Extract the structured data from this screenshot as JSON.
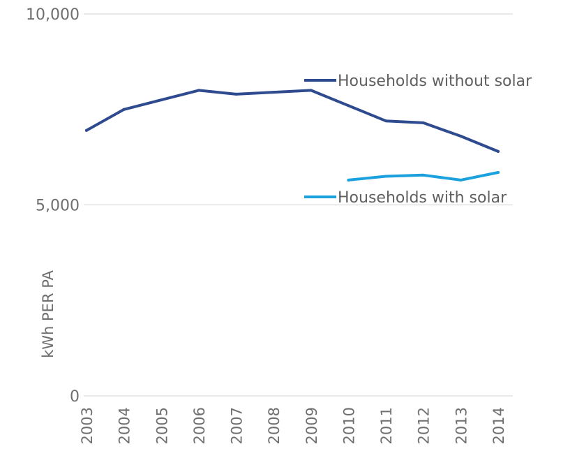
{
  "chart_data": {
    "type": "line",
    "title": "",
    "xlabel": "",
    "ylabel": "kWh PER PA",
    "x": [
      "2003",
      "2004",
      "2005",
      "2006",
      "2007",
      "2008",
      "2009",
      "2010",
      "2011",
      "2012",
      "2013",
      "2014"
    ],
    "ylim": [
      0,
      10000
    ],
    "yticks": [
      {
        "value": 0,
        "label": "0"
      },
      {
        "value": 5000,
        "label": "5,000"
      },
      {
        "value": 10000,
        "label": "10,000"
      }
    ],
    "grid": true,
    "series": [
      {
        "name": "Households without solar",
        "color": "#2f4b8f",
        "values": [
          6950,
          7500,
          7750,
          8000,
          7900,
          7950,
          8000,
          7600,
          7200,
          7150,
          6800,
          6400
        ]
      },
      {
        "name": "Households with solar",
        "color": "#1ba1dd",
        "values": [
          null,
          null,
          null,
          null,
          null,
          null,
          null,
          5650,
          5750,
          5780,
          5650,
          5850
        ]
      }
    ]
  }
}
